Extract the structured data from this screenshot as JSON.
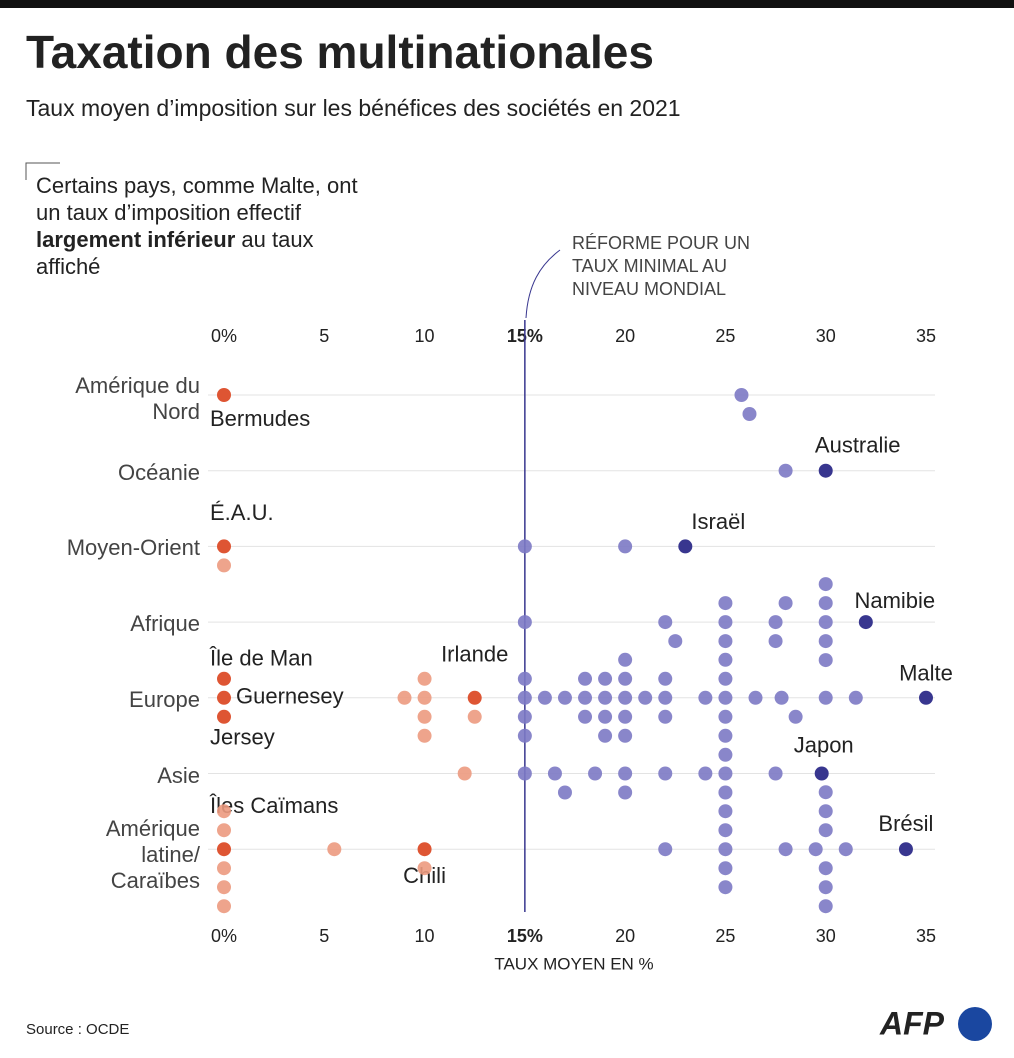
{
  "chart_data": {
    "type": "strip",
    "title": "Taxation des multinationales",
    "subtitle": "Taux moyen d’imposition sur les bénéfices des sociétés en 2021",
    "note": [
      "Certains pays, comme Malte, ont un taux d’imposition effectif ",
      "largement inférieur",
      " au taux affiché"
    ],
    "reference": {
      "value": 15,
      "label": "RÉFORME POUR UN TAUX MINIMAL AU NIVEAU MONDIAL"
    },
    "xlabel": "TAUX MOYEN EN %",
    "xlim": [
      0,
      35
    ],
    "xticks": [
      {
        "value": 0,
        "label": "0%"
      },
      5,
      10,
      {
        "value": 15,
        "label": "15%"
      },
      20,
      25,
      30,
      35
    ],
    "grid": false,
    "colors": {
      "below": "#ec9a80",
      "below_highlight": "#de5533",
      "above": "#7c79c4",
      "above_highlight": "#38368f"
    },
    "rows": [
      {
        "region": "Amérique du Nord",
        "values": [
          25.8,
          26.2
        ],
        "highlights": [
          {
            "label": "Bermudes",
            "value": 0
          }
        ]
      },
      {
        "region": "Océanie",
        "values": [
          28
        ],
        "highlights": [
          {
            "label": "Australie",
            "value": 30
          }
        ]
      },
      {
        "region": "Moyen-Orient",
        "values": [
          0,
          15,
          20
        ],
        "highlights": [
          {
            "label": "É.A.U.",
            "value": 0
          },
          {
            "label": "Israël",
            "value": 23
          }
        ]
      },
      {
        "region": "Afrique",
        "values": [
          15,
          22,
          22.5,
          25,
          25,
          25,
          27.5,
          27.5,
          28,
          30,
          30,
          30,
          30,
          30
        ],
        "highlights": [
          {
            "label": "Namibie",
            "value": 32
          }
        ]
      },
      {
        "region": "Europe",
        "values": [
          9,
          10,
          10,
          10,
          10,
          12.5,
          15,
          15,
          15,
          15,
          16,
          17,
          18,
          18,
          18,
          19,
          19,
          19,
          19,
          20,
          20,
          20,
          20,
          20,
          21,
          22,
          22,
          22,
          24,
          25,
          25,
          25,
          25,
          25,
          25,
          26.5,
          27.8,
          28.5,
          30,
          31.5
        ],
        "highlights": [
          {
            "label": "Île de Man",
            "value": 0
          },
          {
            "label": "Guernesey",
            "value": 0
          },
          {
            "label": "Jersey",
            "value": 0
          },
          {
            "label": "Irlande",
            "value": 12.5
          },
          {
            "label": "Malte",
            "value": 35
          }
        ]
      },
      {
        "region": "Asie",
        "values": [
          12,
          15,
          16.5,
          17,
          18.5,
          20,
          20,
          22,
          24,
          25,
          25,
          27.5
        ],
        "highlights": [
          {
            "label": "Japon",
            "value": 29.8
          }
        ]
      },
      {
        "region": "Amérique latine/ Caraïbes",
        "values": [
          0,
          0,
          0,
          0,
          0,
          5.5,
          10,
          22,
          25,
          25,
          25,
          25,
          25,
          28,
          29.5,
          30,
          30,
          30,
          30,
          30,
          30,
          31
        ],
        "highlights": [
          {
            "label": "Îles Caïmans",
            "value": 0
          },
          {
            "label": "Chili",
            "value": 10
          },
          {
            "label": "Brésil",
            "value": 34
          }
        ]
      }
    ],
    "source": "Source : OCDE",
    "logo": "AFP"
  }
}
